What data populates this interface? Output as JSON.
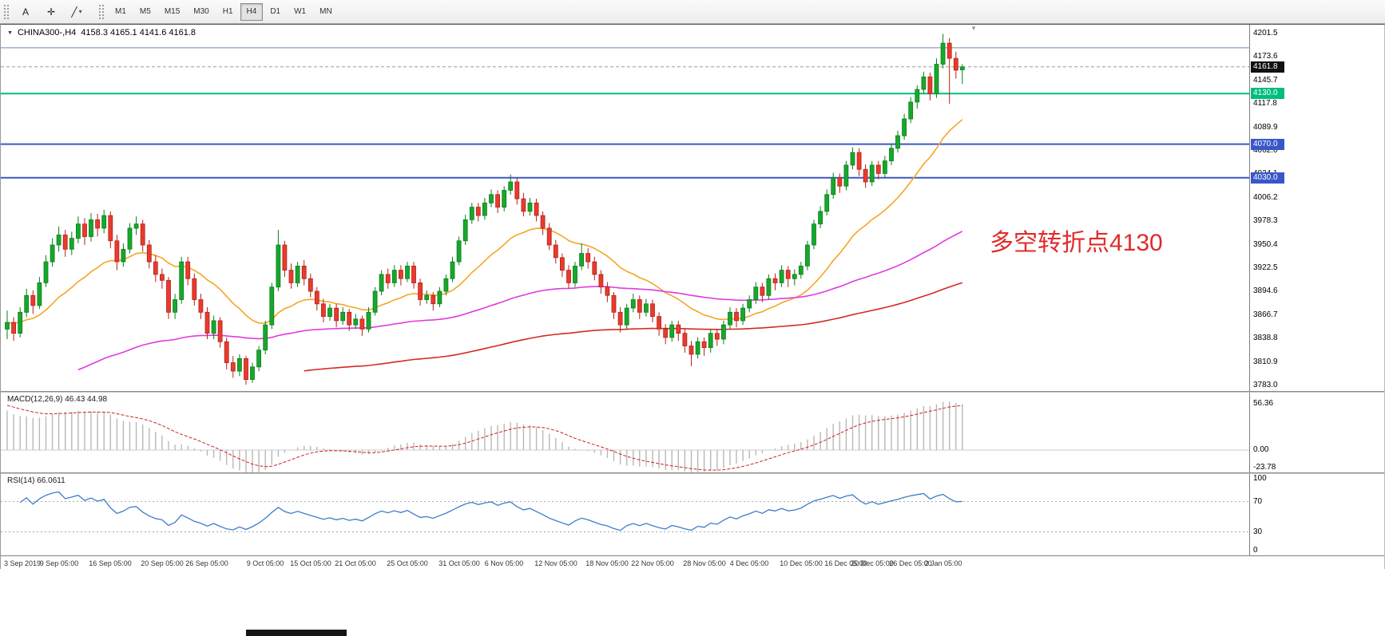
{
  "toolbar": {
    "tools": {
      "text_tool": "A",
      "crosshair_tool": "✛",
      "draw_tool": "╱",
      "caret": "▾"
    },
    "timeframes": [
      "M1",
      "M5",
      "M15",
      "M30",
      "H1",
      "H4",
      "D1",
      "W1",
      "MN"
    ],
    "active_timeframe": "H4"
  },
  "chart": {
    "title": "CHINA300-,H4",
    "ohlc": "4158.3 4165.1 4141.6 4161.8",
    "annotation": {
      "text": "多空转折点4130",
      "color": "#e02b2b"
    },
    "current_price": {
      "value": 4161.8,
      "label": "4161.8"
    },
    "price_axis": [
      "4201.5",
      "4173.6",
      "4145.7",
      "4117.8",
      "4089.9",
      "4062.0",
      "4034.1",
      "4006.2",
      "3978.3",
      "3950.4",
      "3922.5",
      "3894.6",
      "3866.7",
      "3838.8",
      "3810.9",
      "3783.0"
    ],
    "horizontal_lines": [
      {
        "price": 4184.5,
        "color": "#6d8cb5",
        "width": 1,
        "label": ""
      },
      {
        "price": 4130.0,
        "color": "#00bd7e",
        "width": 2,
        "label": "4130.0"
      },
      {
        "price": 4070.0,
        "color": "#3a57c9",
        "width": 2,
        "label": "4070.0"
      },
      {
        "price": 4030.0,
        "color": "#3a57c9",
        "width": 2,
        "label": "4030.0"
      }
    ],
    "colors": {
      "up": "#17a82b",
      "up_border": "#0b7d1d",
      "down": "#e83b2e",
      "down_border": "#b52019",
      "ma_fast": "#f5a623",
      "ma_mid": "#e03ae0",
      "ma_slow": "#d42a20",
      "macd_hist": "#b8b8b8",
      "macd_signal": "#d02020",
      "rsi": "#3b7dc8"
    }
  },
  "chart_data": {
    "type": "candlestick",
    "symbol": "CHINA300-",
    "timeframe": "H4",
    "ylim": [
      3783.0,
      4201.5
    ],
    "candles": [
      [
        3850,
        3872,
        3838,
        3858
      ],
      [
        3858,
        3864,
        3836,
        3845
      ],
      [
        3845,
        3876,
        3840,
        3870
      ],
      [
        3870,
        3898,
        3864,
        3890
      ],
      [
        3890,
        3896,
        3868,
        3878
      ],
      [
        3878,
        3912,
        3874,
        3905
      ],
      [
        3905,
        3938,
        3900,
        3930
      ],
      [
        3930,
        3958,
        3924,
        3950
      ],
      [
        3950,
        3972,
        3942,
        3962
      ],
      [
        3962,
        3968,
        3936,
        3945
      ],
      [
        3945,
        3966,
        3938,
        3958
      ],
      [
        3958,
        3984,
        3952,
        3975
      ],
      [
        3975,
        3982,
        3950,
        3960
      ],
      [
        3960,
        3988,
        3954,
        3980
      ],
      [
        3980,
        3987,
        3960,
        3970
      ],
      [
        3970,
        3992,
        3964,
        3985
      ],
      [
        3985,
        3990,
        3946,
        3955
      ],
      [
        3955,
        3962,
        3920,
        3930
      ],
      [
        3930,
        3952,
        3924,
        3945
      ],
      [
        3945,
        3976,
        3940,
        3970
      ],
      [
        3970,
        3984,
        3962,
        3975
      ],
      [
        3975,
        3980,
        3942,
        3950
      ],
      [
        3950,
        3956,
        3922,
        3930
      ],
      [
        3930,
        3938,
        3906,
        3915
      ],
      [
        3915,
        3922,
        3898,
        3908
      ],
      [
        3908,
        3912,
        3862,
        3870
      ],
      [
        3870,
        3892,
        3862,
        3885
      ],
      [
        3885,
        3936,
        3880,
        3930
      ],
      [
        3930,
        3936,
        3902,
        3910
      ],
      [
        3910,
        3916,
        3878,
        3885
      ],
      [
        3885,
        3892,
        3862,
        3870
      ],
      [
        3870,
        3876,
        3838,
        3845
      ],
      [
        3845,
        3866,
        3838,
        3860
      ],
      [
        3860,
        3864,
        3828,
        3835
      ],
      [
        3835,
        3840,
        3802,
        3810
      ],
      [
        3810,
        3818,
        3792,
        3800
      ],
      [
        3800,
        3820,
        3794,
        3815
      ],
      [
        3815,
        3818,
        3784,
        3790
      ],
      [
        3790,
        3810,
        3786,
        3805
      ],
      [
        3805,
        3830,
        3800,
        3825
      ],
      [
        3825,
        3860,
        3820,
        3855
      ],
      [
        3855,
        3905,
        3850,
        3900
      ],
      [
        3900,
        3968,
        3895,
        3950
      ],
      [
        3950,
        3955,
        3912,
        3920
      ],
      [
        3920,
        3928,
        3898,
        3905
      ],
      [
        3905,
        3930,
        3900,
        3925
      ],
      [
        3925,
        3932,
        3902,
        3910
      ],
      [
        3910,
        3916,
        3888,
        3895
      ],
      [
        3895,
        3900,
        3872,
        3880
      ],
      [
        3880,
        3886,
        3858,
        3865
      ],
      [
        3865,
        3880,
        3860,
        3875
      ],
      [
        3875,
        3880,
        3852,
        3860
      ],
      [
        3860,
        3876,
        3855,
        3870
      ],
      [
        3870,
        3874,
        3848,
        3855
      ],
      [
        3855,
        3868,
        3850,
        3862
      ],
      [
        3862,
        3866,
        3842,
        3850
      ],
      [
        3850,
        3876,
        3846,
        3870
      ],
      [
        3870,
        3900,
        3866,
        3895
      ],
      [
        3895,
        3920,
        3890,
        3915
      ],
      [
        3915,
        3922,
        3898,
        3905
      ],
      [
        3905,
        3926,
        3900,
        3920
      ],
      [
        3920,
        3926,
        3902,
        3910
      ],
      [
        3910,
        3930,
        3906,
        3925
      ],
      [
        3925,
        3930,
        3898,
        3905
      ],
      [
        3905,
        3910,
        3878,
        3885
      ],
      [
        3885,
        3896,
        3880,
        3890
      ],
      [
        3890,
        3894,
        3872,
        3880
      ],
      [
        3880,
        3900,
        3876,
        3895
      ],
      [
        3895,
        3915,
        3890,
        3910
      ],
      [
        3910,
        3936,
        3906,
        3930
      ],
      [
        3930,
        3960,
        3926,
        3955
      ],
      [
        3955,
        3986,
        3950,
        3980
      ],
      [
        3980,
        4000,
        3975,
        3995
      ],
      [
        3995,
        4000,
        3978,
        3985
      ],
      [
        3985,
        4006,
        3980,
        4000
      ],
      [
        4000,
        4016,
        3995,
        4010
      ],
      [
        4010,
        4015,
        3988,
        3995
      ],
      [
        3995,
        4020,
        3990,
        4015
      ],
      [
        4015,
        4034,
        4010,
        4025
      ],
      [
        4025,
        4030,
        3998,
        4005
      ],
      [
        4005,
        4012,
        3984,
        3990
      ],
      [
        3990,
        4006,
        3985,
        4000
      ],
      [
        4000,
        4005,
        3978,
        3985
      ],
      [
        3985,
        3990,
        3962,
        3970
      ],
      [
        3970,
        3976,
        3944,
        3950
      ],
      [
        3950,
        3956,
        3928,
        3935
      ],
      [
        3935,
        3940,
        3912,
        3920
      ],
      [
        3920,
        3926,
        3898,
        3905
      ],
      [
        3905,
        3930,
        3900,
        3925
      ],
      [
        3925,
        3952,
        3920,
        3940
      ],
      [
        3940,
        3946,
        3922,
        3930
      ],
      [
        3930,
        3936,
        3908,
        3915
      ],
      [
        3915,
        3920,
        3892,
        3900
      ],
      [
        3900,
        3906,
        3882,
        3890
      ],
      [
        3890,
        3894,
        3862,
        3870
      ],
      [
        3870,
        3876,
        3846,
        3855
      ],
      [
        3855,
        3880,
        3850,
        3875
      ],
      [
        3875,
        3892,
        3870,
        3885
      ],
      [
        3885,
        3890,
        3862,
        3870
      ],
      [
        3870,
        3886,
        3865,
        3880
      ],
      [
        3880,
        3885,
        3858,
        3865
      ],
      [
        3865,
        3870,
        3842,
        3850
      ],
      [
        3850,
        3856,
        3832,
        3840
      ],
      [
        3840,
        3860,
        3835,
        3855
      ],
      [
        3855,
        3860,
        3836,
        3845
      ],
      [
        3845,
        3850,
        3822,
        3830
      ],
      [
        3830,
        3836,
        3806,
        3820
      ],
      [
        3820,
        3840,
        3815,
        3835
      ],
      [
        3835,
        3840,
        3818,
        3828
      ],
      [
        3828,
        3850,
        3822,
        3845
      ],
      [
        3845,
        3850,
        3830,
        3838
      ],
      [
        3838,
        3860,
        3832,
        3855
      ],
      [
        3855,
        3876,
        3850,
        3870
      ],
      [
        3870,
        3875,
        3852,
        3860
      ],
      [
        3860,
        3880,
        3855,
        3875
      ],
      [
        3875,
        3890,
        3870,
        3885
      ],
      [
        3885,
        3906,
        3880,
        3900
      ],
      [
        3900,
        3905,
        3882,
        3890
      ],
      [
        3890,
        3915,
        3885,
        3910
      ],
      [
        3910,
        3916,
        3896,
        3905
      ],
      [
        3905,
        3926,
        3900,
        3920
      ],
      [
        3920,
        3925,
        3900,
        3910
      ],
      [
        3910,
        3921,
        3902,
        3915
      ],
      [
        3915,
        3930,
        3910,
        3925
      ],
      [
        3925,
        3955,
        3920,
        3950
      ],
      [
        3950,
        3980,
        3945,
        3975
      ],
      [
        3975,
        3996,
        3970,
        3990
      ],
      [
        3990,
        4016,
        3985,
        4010
      ],
      [
        4010,
        4036,
        4005,
        4030
      ],
      [
        4030,
        4035,
        4012,
        4020
      ],
      [
        4020,
        4050,
        4015,
        4045
      ],
      [
        4045,
        4066,
        4040,
        4060
      ],
      [
        4060,
        4065,
        4032,
        4040
      ],
      [
        4040,
        4046,
        4018,
        4025
      ],
      [
        4025,
        4050,
        4020,
        4045
      ],
      [
        4045,
        4050,
        4028,
        4035
      ],
      [
        4035,
        4056,
        4030,
        4050
      ],
      [
        4050,
        4070,
        4045,
        4065
      ],
      [
        4065,
        4086,
        4060,
        4080
      ],
      [
        4080,
        4106,
        4075,
        4100
      ],
      [
        4100,
        4126,
        4095,
        4120
      ],
      [
        4120,
        4140,
        4112,
        4135
      ],
      [
        4135,
        4156,
        4130,
        4150
      ],
      [
        4150,
        4155,
        4122,
        4130
      ],
      [
        4130,
        4172,
        4125,
        4165
      ],
      [
        4165,
        4201,
        4160,
        4190
      ],
      [
        4190,
        4196,
        4118,
        4172
      ],
      [
        4172,
        4180,
        4148,
        4158
      ],
      [
        4158.3,
        4165.1,
        4141.6,
        4161.8
      ]
    ],
    "time_labels": [
      {
        "label": "3 Sep 2019",
        "i": 0
      },
      {
        "label": "9 Sep 05:00",
        "i": 8
      },
      {
        "label": "16 Sep 05:00",
        "i": 16
      },
      {
        "label": "20 Sep 05:00",
        "i": 24
      },
      {
        "label": "26 Sep 05:00",
        "i": 31
      },
      {
        "label": "9 Oct 05:00",
        "i": 40
      },
      {
        "label": "15 Oct 05:00",
        "i": 47
      },
      {
        "label": "21 Oct 05:00",
        "i": 54
      },
      {
        "label": "25 Oct 05:00",
        "i": 62
      },
      {
        "label": "31 Oct 05:00",
        "i": 70
      },
      {
        "label": "6 Nov 05:00",
        "i": 77
      },
      {
        "label": "12 Nov 05:00",
        "i": 85
      },
      {
        "label": "18 Nov 05:00",
        "i": 93
      },
      {
        "label": "22 Nov 05:00",
        "i": 100
      },
      {
        "label": "28 Nov 05:00",
        "i": 108
      },
      {
        "label": "4 Dec 05:00",
        "i": 115
      },
      {
        "label": "10 Dec 05:00",
        "i": 123
      },
      {
        "label": "16 Dec 05:00",
        "i": 130
      },
      {
        "label": "20 Dec 05:00",
        "i": 134
      },
      {
        "label": "26 Dec 05:00",
        "i": 140
      },
      {
        "label": "2 Jan 05:00",
        "i": 145
      }
    ],
    "indicators": {
      "ma": [
        {
          "id": "ma-fast",
          "color": "#f5a623",
          "alpha": 0.095,
          "seed": null,
          "from": 0
        },
        {
          "id": "ma-mid",
          "color": "#e03ae0",
          "alpha": 0.02,
          "seed": 3770,
          "from": 11
        },
        {
          "id": "ma-slow",
          "color": "#d42a20",
          "alpha": 0.01,
          "seed": 3740,
          "from": 46
        }
      ],
      "macd": {
        "label": "MACD(12,26,9) 46.43 44.98",
        "params": [
          12,
          26,
          9
        ],
        "axis": [
          {
            "v": 56.36,
            "label": "56.36"
          },
          {
            "v": 0,
            "label": "0.00"
          },
          {
            "v": -23.78,
            "label": "-23.78"
          }
        ]
      },
      "rsi": {
        "label": "RSI(14) 66.0611",
        "period": 14,
        "value": 66.0611,
        "levels": [
          70,
          30
        ],
        "axis": [
          {
            "v": 100,
            "label": "100"
          },
          {
            "v": 70,
            "label": "70"
          },
          {
            "v": 30,
            "label": "30"
          },
          {
            "v": 0,
            "label": "0"
          }
        ]
      }
    }
  }
}
